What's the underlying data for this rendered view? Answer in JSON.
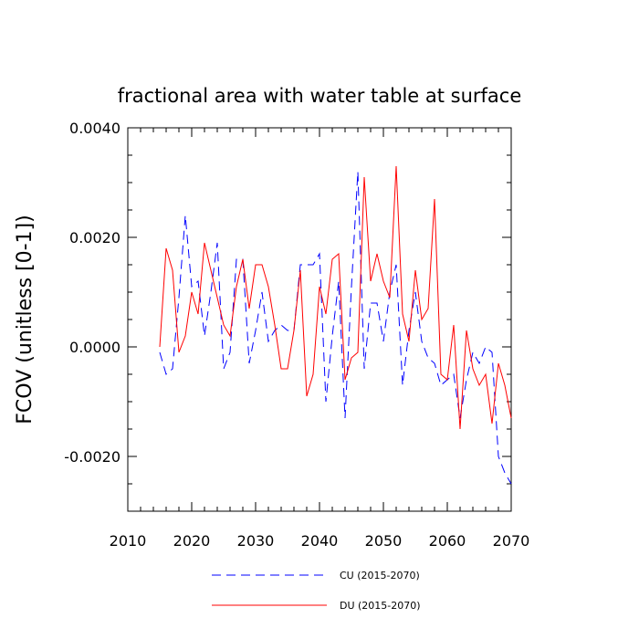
{
  "chart_data": {
    "type": "line",
    "title": "fractional area with water table at surface",
    "xlabel": "",
    "ylabel": "FCOV  (unitless [0-1])",
    "xlim": [
      2010,
      2070
    ],
    "ylim": [
      -0.003,
      0.004
    ],
    "x_ticks": [
      2010,
      2020,
      2030,
      2040,
      2050,
      2060,
      2070
    ],
    "x_tick_labels": [
      "2010",
      "2020",
      "2030",
      "2040",
      "2050",
      "2060",
      "2070"
    ],
    "y_ticks": [
      -0.002,
      0.0,
      0.002,
      0.004
    ],
    "y_tick_labels": [
      "-0.0020",
      "0.0000",
      "0.0020",
      "0.0040"
    ],
    "x": [
      2015,
      2016,
      2017,
      2018,
      2019,
      2020,
      2021,
      2022,
      2023,
      2024,
      2025,
      2026,
      2027,
      2028,
      2029,
      2030,
      2031,
      2032,
      2033,
      2034,
      2035,
      2036,
      2037,
      2038,
      2039,
      2040,
      2041,
      2042,
      2043,
      2044,
      2045,
      2046,
      2047,
      2048,
      2049,
      2050,
      2051,
      2052,
      2053,
      2054,
      2055,
      2056,
      2057,
      2058,
      2059,
      2060,
      2061,
      2062,
      2063,
      2064,
      2065,
      2066,
      2067,
      2068,
      2069,
      2070
    ],
    "series": [
      {
        "name": "CU (2015-2070)",
        "color": "#0000ff",
        "dash": "dashed",
        "values": [
          -0.0001,
          -0.0005,
          -0.0004,
          0.0009,
          0.0024,
          0.0011,
          0.0012,
          0.0002,
          0.001,
          0.0019,
          -0.0004,
          -0.0001,
          0.0016,
          0.0016,
          -0.0003,
          0.0003,
          0.001,
          0.0001,
          0.0003,
          0.0004,
          0.0003,
          0.0003,
          0.0015,
          0.0015,
          0.0015,
          0.0017,
          -0.001,
          0.0002,
          0.0012,
          -0.0013,
          0.0011,
          0.0032,
          -0.0004,
          0.0008,
          0.0008,
          0.0001,
          0.001,
          0.0015,
          -0.0007,
          0.0003,
          0.001,
          0.0001,
          -0.0002,
          -0.0003,
          -0.0007,
          -0.0006,
          -0.0005,
          -0.0013,
          -0.0006,
          -0.0001,
          -0.0003,
          0.0,
          -0.0001,
          -0.002,
          -0.0023,
          -0.0025
        ]
      },
      {
        "name": "DU (2015-2070)",
        "color": "#ff0000",
        "dash": "solid",
        "values": [
          0.0,
          0.0018,
          0.0014,
          -0.0001,
          0.0002,
          0.001,
          0.0006,
          0.0019,
          0.0014,
          0.0009,
          0.0004,
          0.0002,
          0.0011,
          0.0016,
          0.0007,
          0.0015,
          0.0015,
          0.0011,
          0.0004,
          -0.0004,
          -0.0004,
          0.0003,
          0.0014,
          -0.0009,
          -0.0005,
          0.0011,
          0.0006,
          0.0016,
          0.0017,
          -0.0006,
          -0.0002,
          -0.0001,
          0.0031,
          0.0012,
          0.0017,
          0.0012,
          0.0009,
          0.0033,
          0.0006,
          0.0001,
          0.0014,
          0.0005,
          0.0007,
          0.0027,
          -0.0005,
          -0.0006,
          0.0004,
          -0.0015,
          0.0003,
          -0.0004,
          -0.0007,
          -0.0005,
          -0.0014,
          -0.0003,
          -0.0007,
          -0.0013
        ]
      }
    ],
    "legend": {
      "placement": "bottom-center",
      "entries": [
        "CU (2015-2070)",
        "DU (2015-2070)"
      ]
    }
  }
}
